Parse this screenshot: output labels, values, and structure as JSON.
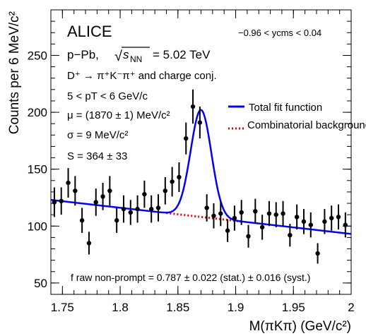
{
  "chart_data": {
    "type": "scatter",
    "title": "",
    "xlabel": "M(πKπ) (GeV/c²)",
    "ylabel": "Counts per 6 MeV/c²",
    "xlim": [
      1.74,
      2.0
    ],
    "ylim": [
      40,
      290
    ],
    "grid": false,
    "legend_position": "top-right",
    "x_ticks": [
      "1.75",
      "1.8",
      "1.85",
      "1.9",
      "1.95",
      "2"
    ],
    "y_ticks": [
      "50",
      "100",
      "150",
      "200",
      "250"
    ],
    "annotations": {
      "experiment": "ALICE",
      "system_prefix": "p−Pb, ",
      "system_energy": "= 5.02 TeV",
      "sqrt_symbol": "√",
      "s_symbol": "s",
      "nn_subscript": "NN",
      "decay": "D⁺ → π⁺K⁻π⁺ and charge conj.",
      "pt_range": "5 < pT < 6 GeV/c",
      "mu": "μ = (1870 ± 1) MeV/c²",
      "sigma": "σ = 9 MeV/c²",
      "signal": "S = 364 ± 33",
      "rapidity": "−0.96 < ycms < 0.04",
      "fraction": "f raw non-prompt = 0.787 ±  0.022 (stat.) ± 0.016 (syst.)"
    },
    "legend": [
      {
        "label": "Total fit function",
        "color": "#0000ff",
        "style": "solid"
      },
      {
        "label": "Combinatorial background",
        "color": "#ee0000",
        "style": "dotted"
      }
    ],
    "series": [
      {
        "kind": "data-points",
        "color": "#000000",
        "x": [
          1.743,
          1.749,
          1.755,
          1.761,
          1.767,
          1.773,
          1.779,
          1.785,
          1.791,
          1.797,
          1.803,
          1.809,
          1.815,
          1.821,
          1.827,
          1.833,
          1.839,
          1.845,
          1.851,
          1.857,
          1.863,
          1.869,
          1.875,
          1.881,
          1.887,
          1.893,
          1.899,
          1.905,
          1.911,
          1.917,
          1.923,
          1.929,
          1.935,
          1.941,
          1.947,
          1.953,
          1.959,
          1.965,
          1.971,
          1.977,
          1.983,
          1.989,
          1.995
        ],
        "y": [
          121,
          122,
          138,
          131,
          105,
          85,
          121,
          126,
          131,
          105,
          115,
          112,
          115,
          128,
          115,
          116,
          131,
          139,
          143,
          177,
          205,
          191,
          116,
          109,
          111,
          96,
          107,
          112,
          91,
          113,
          99,
          111,
          110,
          111,
          92,
          108,
          104,
          101,
          76,
          104,
          107,
          108,
          101
        ],
        "err": [
          13,
          12,
          13,
          13,
          11,
          10,
          12,
          12,
          13,
          11,
          12,
          11,
          12,
          12,
          12,
          12,
          12,
          13,
          13,
          14,
          15,
          14,
          12,
          11,
          11,
          10,
          11,
          11,
          10,
          11,
          11,
          11,
          11,
          11,
          10,
          11,
          11,
          11,
          9,
          11,
          11,
          11,
          11
        ]
      },
      {
        "kind": "fit-background",
        "slope_per_gev": -115,
        "value_at_1_74": 123
      },
      {
        "kind": "fit-signal-gaussian",
        "mean": 1.87,
        "sigma": 0.009,
        "amplitude": 94
      }
    ]
  }
}
